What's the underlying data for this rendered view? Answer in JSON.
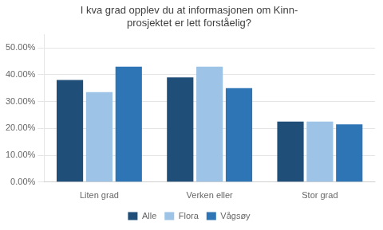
{
  "chart_data": {
    "type": "bar",
    "title": "I kva grad opplev du at informasjonen om Kinn-\nprosjektet er lett forståelig?",
    "categories": [
      "Liten grad",
      "Verken eller",
      "Stor grad"
    ],
    "series": [
      {
        "name": "Alle",
        "color": "#1F4E79",
        "values": [
          0.38,
          0.39,
          0.225
        ]
      },
      {
        "name": "Flora",
        "color": "#9DC3E6",
        "values": [
          0.335,
          0.43,
          0.225
        ]
      },
      {
        "name": "Vågsøy",
        "color": "#2E75B6",
        "values": [
          0.43,
          0.35,
          0.215
        ]
      }
    ],
    "ylim": [
      0,
      0.55
    ],
    "yticks": [
      {
        "value": 0.0,
        "label": "0.00%"
      },
      {
        "value": 0.1,
        "label": "10.00%"
      },
      {
        "value": 0.2,
        "label": "20.00%"
      },
      {
        "value": 0.3,
        "label": "30.00%"
      },
      {
        "value": 0.4,
        "label": "40.00%"
      },
      {
        "value": 0.5,
        "label": "50.00%"
      }
    ],
    "grid": true,
    "legend": "bottom"
  }
}
